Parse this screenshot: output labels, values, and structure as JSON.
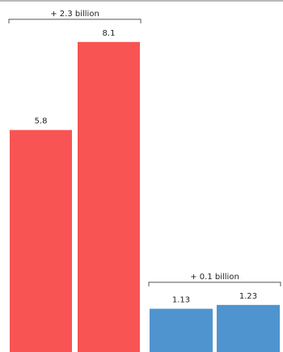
{
  "chart_data": {
    "type": "bar",
    "categories": [
      "",
      "",
      "",
      ""
    ],
    "values": [
      5.8,
      8.1,
      1.13,
      1.23
    ],
    "value_labels": [
      "5.8",
      "8.1",
      "1.13",
      "1.23"
    ],
    "bar_colors": [
      "#f95454",
      "#f95454",
      "#4f94cf",
      "#4f94cf"
    ],
    "annotations": [
      {
        "text": "+ 2.3 billion",
        "from_bar": 0,
        "to_bar": 1
      },
      {
        "text": "+ 0.1 billion",
        "from_bar": 2,
        "to_bar": 3
      }
    ],
    "title": "",
    "xlabel": "",
    "ylabel": "",
    "grid": false,
    "legend": "none"
  }
}
